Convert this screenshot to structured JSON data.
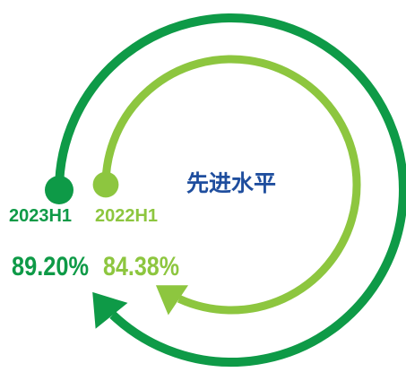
{
  "chart_data": {
    "type": "radial-progress",
    "title": "",
    "center_label": "先进水平",
    "series": [
      {
        "name": "2023H1",
        "value": 89.2,
        "value_label": "89.20%",
        "color": "#0E9A47"
      },
      {
        "name": "2022H1",
        "value": 84.38,
        "value_label": "84.38%",
        "color": "#8DC63F"
      }
    ],
    "max": 100,
    "colors": {
      "title": "#1F4E9E"
    }
  }
}
